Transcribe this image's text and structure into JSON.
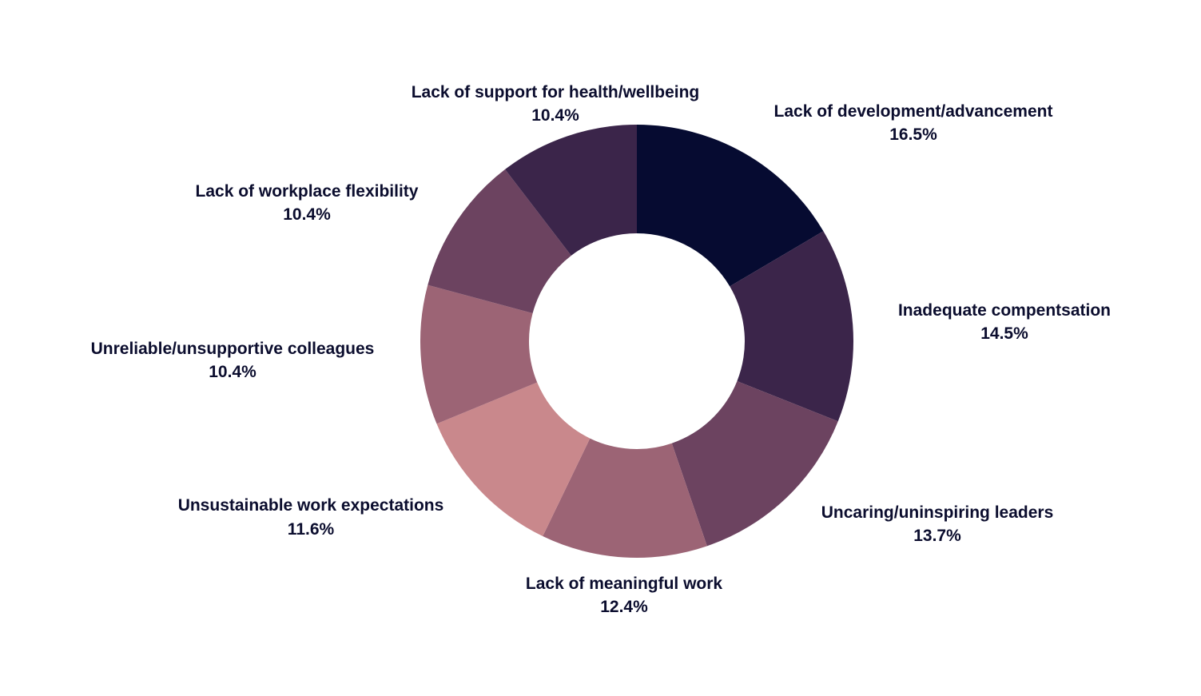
{
  "chart_data": {
    "type": "pie",
    "donut": true,
    "categories": [
      "Lack of development/advancement",
      "Inadequate compentsation",
      "Uncaring/uninspiring leaders",
      "Lack of meaningful work",
      "Unsustainable work expectations",
      "Unreliable/unsupportive colleagues",
      "Lack of workplace flexibility",
      "Lack of support for health/wellbeing"
    ],
    "values": [
      16.5,
      14.5,
      13.7,
      12.4,
      11.6,
      10.4,
      10.4,
      10.4
    ],
    "value_labels": [
      "16.5%",
      "14.5%",
      "13.7%",
      "12.4%",
      "11.6%",
      "10.4%",
      "10.4%",
      "10.4%"
    ],
    "colors": [
      "#060b31",
      "#3b254a",
      "#6c4360",
      "#9c6475",
      "#c9888c",
      "#9c6475",
      "#6c4360",
      "#3b254a"
    ],
    "legend": "none",
    "title": ""
  }
}
